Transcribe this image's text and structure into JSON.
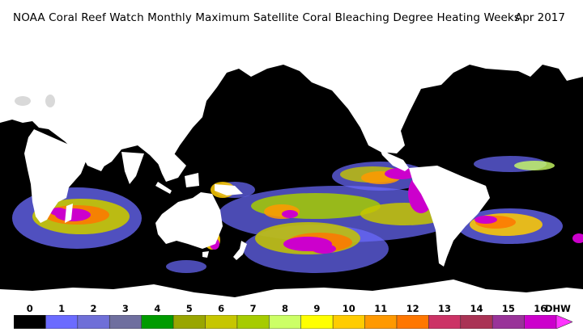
{
  "header": {
    "title": "NOAA Coral Reef Watch Monthly Maximum Satellite Coral Bleaching Degree Heating Weeks",
    "date": "Apr 2017"
  },
  "map": {
    "ocean_color": "#000000",
    "land_color": "#ffffff"
  },
  "legend": {
    "ticks": [
      "0",
      "1",
      "2",
      "3",
      "4",
      "5",
      "6",
      "7",
      "8",
      "9",
      "10",
      "11",
      "12",
      "13",
      "14",
      "15",
      "16"
    ],
    "unit": "DHW",
    "colors": [
      "#000000",
      "#6b6bff",
      "#6f6fd8",
      "#6f6f9f",
      "#009b00",
      "#99a600",
      "#c6c600",
      "#a6cc00",
      "#ccff66",
      "#ffff00",
      "#ffcc00",
      "#ff9900",
      "#ff7700",
      "#cc3366",
      "#aa3355",
      "#993399",
      "#cc00cc"
    ],
    "arrow_color": "#ff33ff"
  }
}
